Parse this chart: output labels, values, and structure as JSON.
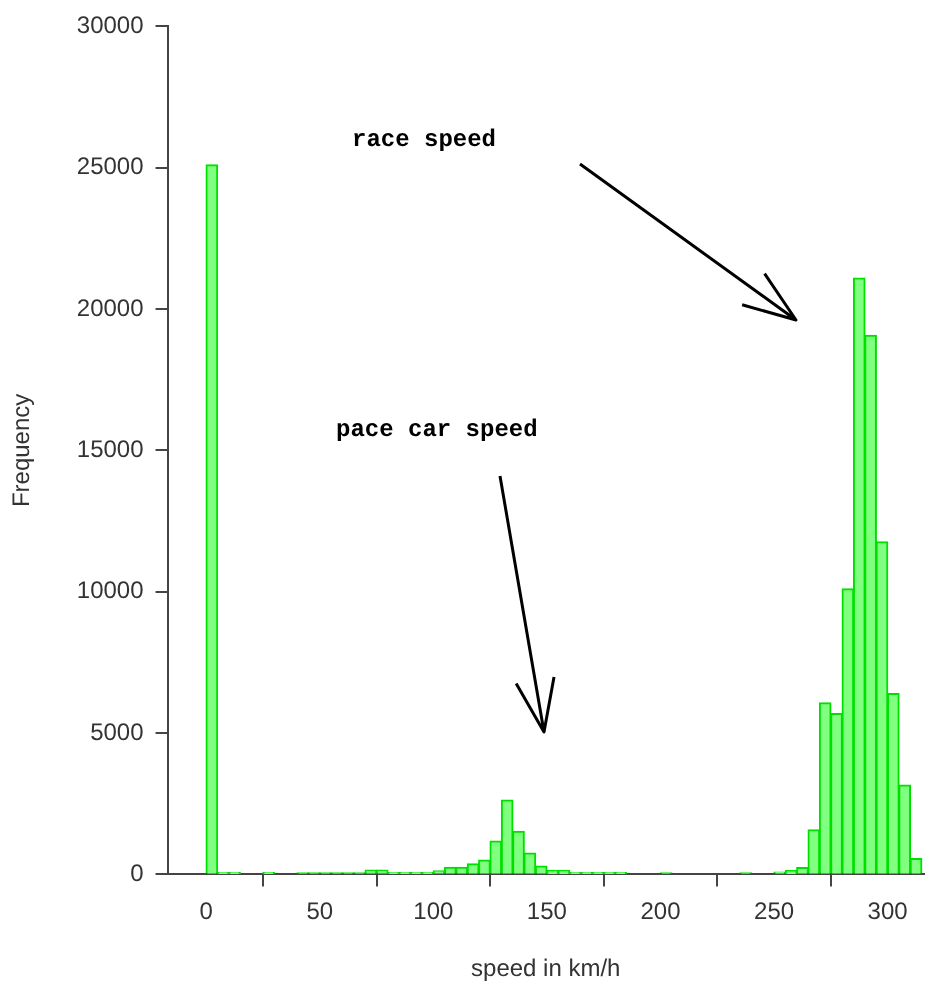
{
  "chart_data": {
    "type": "histogram",
    "xlabel": "speed in km/h",
    "ylabel": "Frequency",
    "bins": [
      0,
      5,
      10,
      15,
      20,
      25,
      30,
      35,
      40,
      45,
      50,
      55,
      60,
      65,
      70,
      75,
      80,
      85,
      90,
      95,
      100,
      105,
      110,
      115,
      120,
      125,
      130,
      135,
      140,
      145,
      150,
      155,
      160,
      165,
      170,
      175,
      180,
      185,
      190,
      195,
      200,
      205,
      210,
      215,
      220,
      225,
      230,
      235,
      240,
      245,
      250,
      255,
      260,
      265,
      270,
      275,
      280,
      285,
      290,
      295,
      300,
      305,
      310,
      315
    ],
    "values": [
      25100,
      60,
      60,
      0,
      0,
      60,
      0,
      0,
      50,
      50,
      50,
      50,
      50,
      50,
      150,
      150,
      60,
      60,
      60,
      60,
      120,
      250,
      250,
      370,
      500,
      1180,
      2630,
      1520,
      750,
      290,
      140,
      140,
      60,
      60,
      60,
      60,
      60,
      0,
      0,
      0,
      50,
      0,
      0,
      0,
      0,
      0,
      0,
      50,
      0,
      0,
      80,
      130,
      240,
      1570,
      6070,
      5690,
      10100,
      21090,
      19070,
      11760,
      6390,
      3160,
      560
    ],
    "color": "#80ff80",
    "xlim": [
      -17,
      316
    ],
    "xticks": [
      0,
      50,
      100,
      150,
      200,
      250,
      300
    ],
    "ylim": [
      0,
      30000
    ],
    "yticks": [
      0,
      5000,
      10000,
      15000,
      20000,
      25000,
      30000
    ],
    "grid": false,
    "legend": false,
    "annotations": [
      "race speed",
      "pace car speed"
    ]
  }
}
